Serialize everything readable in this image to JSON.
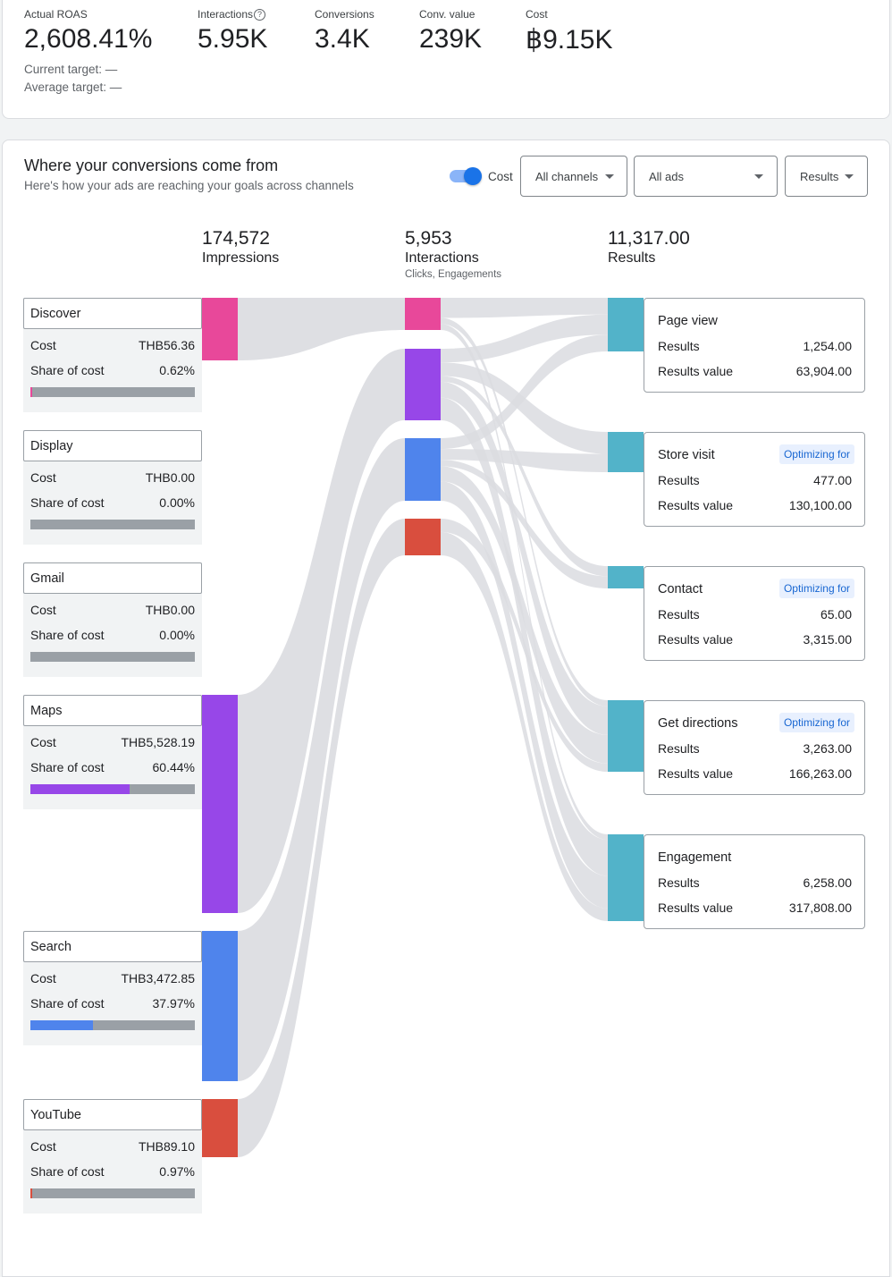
{
  "summary": {
    "metrics": [
      {
        "label": "Actual ROAS",
        "value": "2,608.41%"
      },
      {
        "label": "Interactions",
        "value": "5.95K",
        "help_icon": "help-circle-icon"
      },
      {
        "label": "Conversions",
        "value": "3.4K"
      },
      {
        "label": "Conv. value",
        "value": "239K"
      },
      {
        "label": "Cost",
        "value": "฿9.15K"
      }
    ],
    "current_target": "Current target: —",
    "average_target": "Average target: —"
  },
  "section": {
    "title": "Where your conversions come from",
    "subtitle": "Here's how your ads are reaching your goals across channels",
    "toggle_label": "Cost",
    "toggle_on": true,
    "dropdowns": [
      {
        "label": "All channels",
        "icon": "caret-down-icon"
      },
      {
        "label": "All ads",
        "icon": "caret-down-icon"
      },
      {
        "label": "Results",
        "icon": "caret-down-icon"
      }
    ]
  },
  "columns": [
    {
      "value": "174,572",
      "label": "Impressions",
      "sub": ""
    },
    {
      "value": "5,953",
      "label": "Interactions",
      "sub": "Clicks, Engagements"
    },
    {
      "value": "11,317.00",
      "label": "Results",
      "sub": ""
    }
  ],
  "channels": [
    {
      "name": "Discover",
      "cost_label": "Cost",
      "cost": "THB56.36",
      "share_label": "Share of cost",
      "share": "0.62%",
      "share_pct": 0.62,
      "color": "#e8489a"
    },
    {
      "name": "Display",
      "cost_label": "Cost",
      "cost": "THB0.00",
      "share_label": "Share of cost",
      "share": "0.00%",
      "share_pct": 0,
      "color": "#9aa0a6"
    },
    {
      "name": "Gmail",
      "cost_label": "Cost",
      "cost": "THB0.00",
      "share_label": "Share of cost",
      "share": "0.00%",
      "share_pct": 0,
      "color": "#9aa0a6"
    },
    {
      "name": "Maps",
      "cost_label": "Cost",
      "cost": "THB5,528.19",
      "share_label": "Share of cost",
      "share": "60.44%",
      "share_pct": 60.44,
      "color": "#9747e8"
    },
    {
      "name": "Search",
      "cost_label": "Cost",
      "cost": "THB3,472.85",
      "share_label": "Share of cost",
      "share": "37.97%",
      "share_pct": 37.97,
      "color": "#4f84ec"
    },
    {
      "name": "YouTube",
      "cost_label": "Cost",
      "cost": "THB89.10",
      "share_label": "Share of cost",
      "share": "0.97%",
      "share_pct": 0.97,
      "color": "#d94e3e"
    }
  ],
  "results": [
    {
      "name": "Page view",
      "optimizing": false,
      "results_label": "Results",
      "results": "1,254.00",
      "value_label": "Results value",
      "value": "63,904.00"
    },
    {
      "name": "Store visit",
      "optimizing": true,
      "badge": "Optimizing for",
      "results_label": "Results",
      "results": "477.00",
      "value_label": "Results value",
      "value": "130,100.00"
    },
    {
      "name": "Contact",
      "optimizing": true,
      "badge": "Optimizing for",
      "results_label": "Results",
      "results": "65.00",
      "value_label": "Results value",
      "value": "3,315.00"
    },
    {
      "name": "Get directions",
      "optimizing": true,
      "badge": "Optimizing for",
      "results_label": "Results",
      "results": "3,263.00",
      "value_label": "Results value",
      "value": "166,263.00"
    },
    {
      "name": "Engagement",
      "optimizing": false,
      "results_label": "Results",
      "results": "6,258.00",
      "value_label": "Results value",
      "value": "317,808.00"
    }
  ],
  "colors": {
    "flow": "#dadce0",
    "result_node": "#52b3c9",
    "accent": "#1a73e8"
  }
}
